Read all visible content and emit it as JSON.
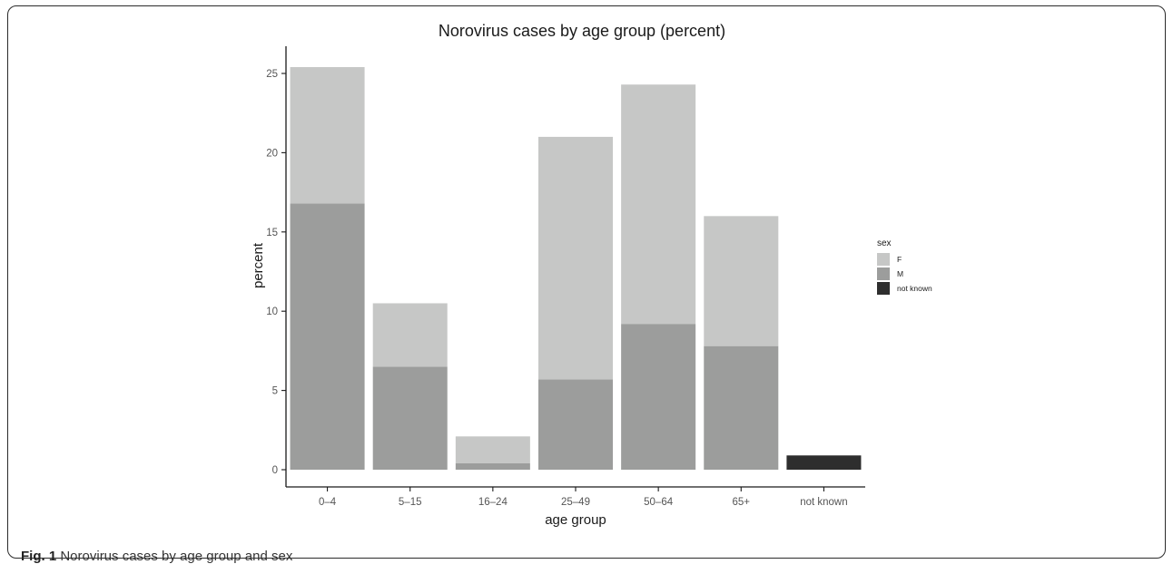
{
  "caption": {
    "label": "Fig. 1",
    "text": "Norovirus cases by age group and sex"
  },
  "colors": {
    "F": "#c6c7c6",
    "M": "#9c9d9c",
    "not known": "#2e2e2e"
  },
  "chart_data": {
    "type": "bar",
    "stacked": true,
    "title": "Norovirus cases by age group (percent)",
    "xlabel": "age group",
    "ylabel": "percent",
    "ylim": [
      0,
      26
    ],
    "yticks": [
      0,
      5,
      10,
      15,
      20,
      25
    ],
    "grid": false,
    "legend": {
      "title": "sex",
      "position": "right"
    },
    "categories": [
      "0–4",
      "5–15",
      "16–24",
      "25–49",
      "50–64",
      "65+",
      "not known"
    ],
    "series": [
      {
        "name": "M",
        "values": [
          16.8,
          6.5,
          0.4,
          5.7,
          9.2,
          7.8,
          0
        ]
      },
      {
        "name": "F",
        "values": [
          8.6,
          4.0,
          1.7,
          15.3,
          15.1,
          8.2,
          0
        ]
      },
      {
        "name": "not known",
        "values": [
          0,
          0,
          0,
          0,
          0,
          0,
          0.9
        ]
      }
    ]
  }
}
